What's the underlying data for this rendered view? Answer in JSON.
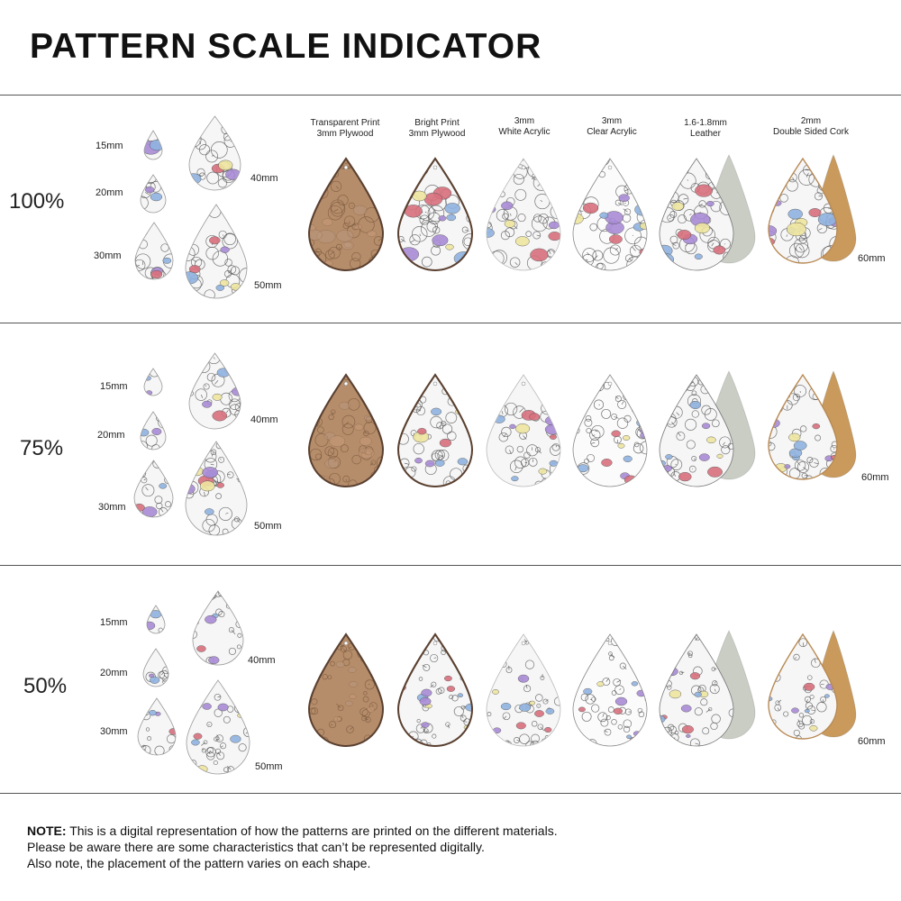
{
  "title": "PATTERN SCALE INDICATOR",
  "materials": [
    {
      "line1": "Transparent Print",
      "line2": "3mm Plywood"
    },
    {
      "line1": "Bright Print",
      "line2": "3mm Plywood"
    },
    {
      "line1": "3mm",
      "line2": "White Acrylic"
    },
    {
      "line1": "3mm",
      "line2": "Clear Acrylic"
    },
    {
      "line1": "1.6-1.8mm",
      "line2": "Leather"
    },
    {
      "line1": "2mm",
      "line2": "Double Sided Cork"
    }
  ],
  "sections": [
    {
      "scale": "100%",
      "sizes": [
        "15mm",
        "20mm",
        "30mm",
        "40mm",
        "50mm"
      ],
      "large_size": "60mm"
    },
    {
      "scale": "75%",
      "sizes": [
        "15mm",
        "20mm",
        "30mm",
        "40mm",
        "50mm"
      ],
      "large_size": "60mm"
    },
    {
      "scale": "50%",
      "sizes": [
        "15mm",
        "20mm",
        "30mm",
        "40mm",
        "50mm"
      ],
      "large_size": "60mm"
    }
  ],
  "colors": {
    "butterfly_purple": "#a98bd6",
    "butterfly_blue": "#8fb3e0",
    "strawberry_pink": "#d9707e",
    "flower_yellow": "#efe6a0",
    "plywood": "#b68d6a",
    "leather_back": "#c9cdc4",
    "cork_back": "#c99a5c"
  },
  "note": {
    "bold": "NOTE:",
    "line1": " This is a digital representation of how the patterns are printed on the different materials.",
    "line2": "Please be aware there are some characteristics that can’t be represented digitally.",
    "line3": "Also note, the placement of the pattern varies on each shape."
  }
}
